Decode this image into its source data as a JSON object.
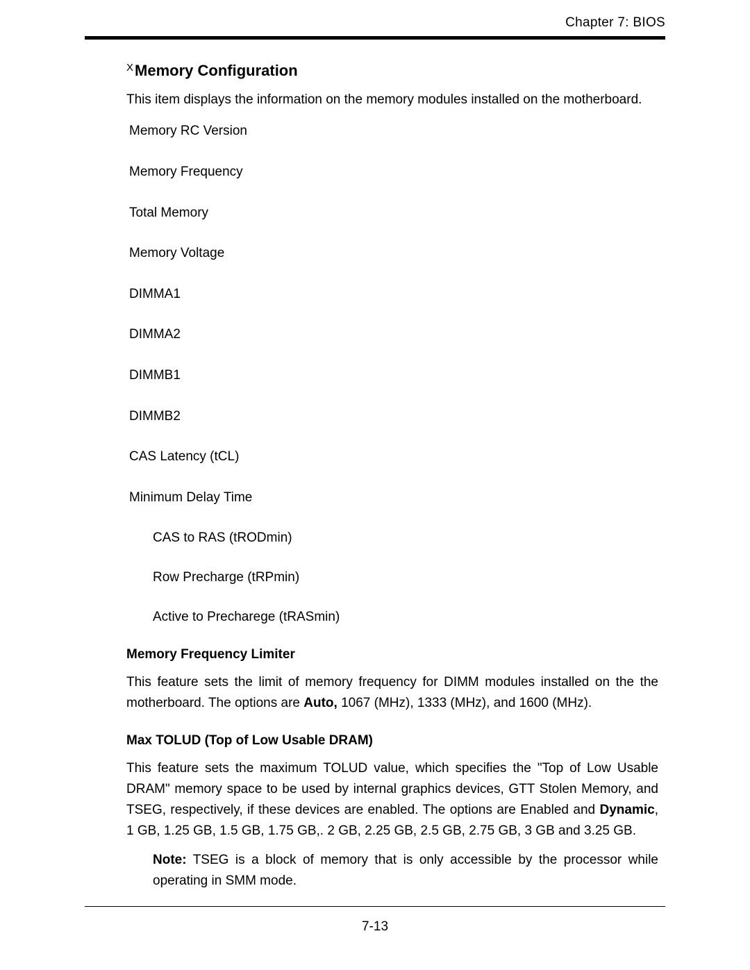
{
  "header": {
    "chapter": "Chapter 7: BIOS"
  },
  "section": {
    "marker": "X",
    "title": "Memory Conﬁguration",
    "intro": "This item displays the information on the memory modules installed on the motherboard."
  },
  "memory_items": [
    "Memory RC Version",
    "Memory Frequency",
    "Total Memory",
    "Memory Voltage",
    "DIMMA1",
    "DIMMA2",
    "DIMMB1",
    "DIMMB2",
    "CAS Latency (tCL)",
    "Minimum Delay Time"
  ],
  "sub_items": [
    "CAS to RAS (tRODmin)",
    "Row Precharge (tRPmin)",
    "Active to Precharege (tRASmin)"
  ],
  "freq_limiter": {
    "title": "Memory Frequency Limiter",
    "text_before": "This feature sets the limit of memory frequency for DIMM modules installed on the the motherboard. The options are ",
    "bold": "Auto,",
    "text_after": " 1067 (MHz),  1333 (MHz), and 1600 (MHz)."
  },
  "tolud": {
    "title": "Max TOLUD (Top of Low Usable DRAM)",
    "text_before": "This feature sets the maximum TOLUD value, which speciﬁes the \"Top of Low Usable DRAM\" memory space to be used by internal graphics devices, GTT Stolen Memory, and TSEG, respectively, if these devices are enabled. The options are Enabled and ",
    "bold": "Dynamic",
    "text_after": ", 1 GB, 1.25 GB, 1.5 GB, 1.75 GB,. 2 GB, 2.25 GB, 2.5 GB, 2.75 GB, 3 GB and 3.25 GB."
  },
  "note": {
    "label": "Note:",
    "text": " TSEG is a block of memory that is only accessible by the processor while operating in SMM mode."
  },
  "footer": {
    "page_number": "7-13"
  }
}
